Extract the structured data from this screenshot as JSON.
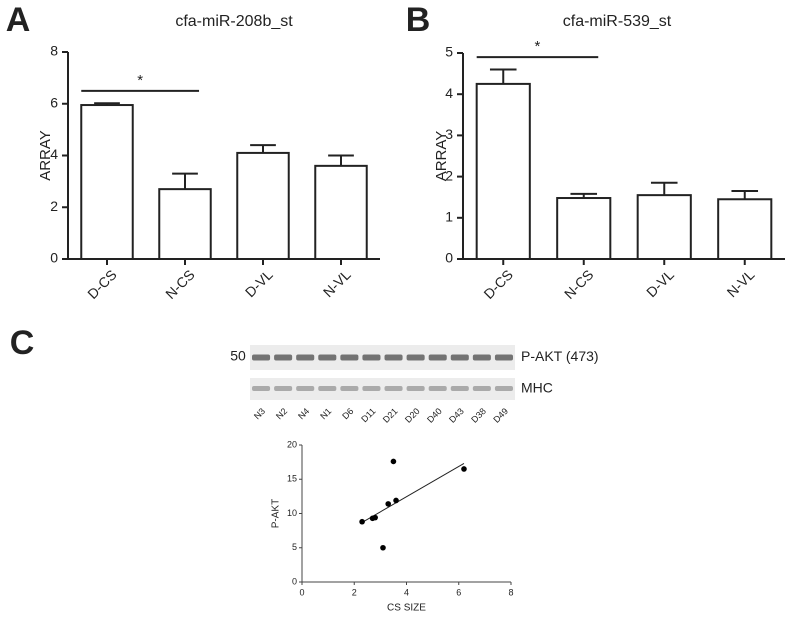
{
  "chart_data": [
    {
      "type": "bar",
      "panel_label": "A",
      "title": "cfa-miR-208b_st",
      "y_label": "ARRAY",
      "categories": [
        "D-CS",
        "N-CS",
        "D-VL",
        "N-VL"
      ],
      "values": [
        5.95,
        2.7,
        4.1,
        3.6
      ],
      "errors": [
        0.07,
        0.6,
        0.3,
        0.4
      ],
      "color": "#ffffff",
      "ylim": [
        0,
        8
      ],
      "yticks": [
        0,
        2,
        4,
        6,
        8
      ],
      "annotation": {
        "text": "*",
        "from": "D-CS",
        "to": "N-CS",
        "y": 6.5
      }
    },
    {
      "type": "bar",
      "panel_label": "B",
      "title": "cfa-miR-539_st",
      "y_label": "ARRAY",
      "categories": [
        "D-CS",
        "N-CS",
        "D-VL",
        "N-VL"
      ],
      "values": [
        4.25,
        1.48,
        1.55,
        1.45
      ],
      "errors": [
        0.35,
        0.1,
        0.3,
        0.2
      ],
      "color": "#ffffff",
      "ylim": [
        0,
        5
      ],
      "yticks": [
        0,
        1,
        2,
        3,
        4,
        5
      ],
      "annotation": {
        "text": "*",
        "from": "D-CS",
        "to": "N-CS",
        "y": 4.9
      }
    },
    {
      "type": "scatter",
      "panel_label": "C",
      "x_label": "CS SIZE",
      "y_label": "P-AKT",
      "x": [
        2.3,
        2.7,
        2.8,
        3.1,
        3.3,
        3.5,
        3.6,
        6.2
      ],
      "y": [
        8.8,
        9.3,
        9.4,
        5.0,
        11.4,
        17.6,
        11.9,
        16.5
      ],
      "color": "#000000",
      "xlim": [
        0,
        8
      ],
      "xticks": [
        0,
        2,
        4,
        6,
        8
      ],
      "ylim": [
        0,
        20
      ],
      "yticks": [
        0,
        5,
        10,
        15,
        20
      ],
      "fit": {
        "x": [
          2.3,
          6.2
        ],
        "y": [
          8.7,
          17.3
        ]
      }
    }
  ],
  "blot": {
    "marker": "50",
    "bands": [
      "P-AKT (473)",
      "MHC"
    ],
    "lanes": [
      "N3",
      "N2",
      "N4",
      "N1",
      "D6",
      "D11",
      "D21",
      "D20",
      "D40",
      "D43",
      "D38",
      "D49"
    ]
  }
}
